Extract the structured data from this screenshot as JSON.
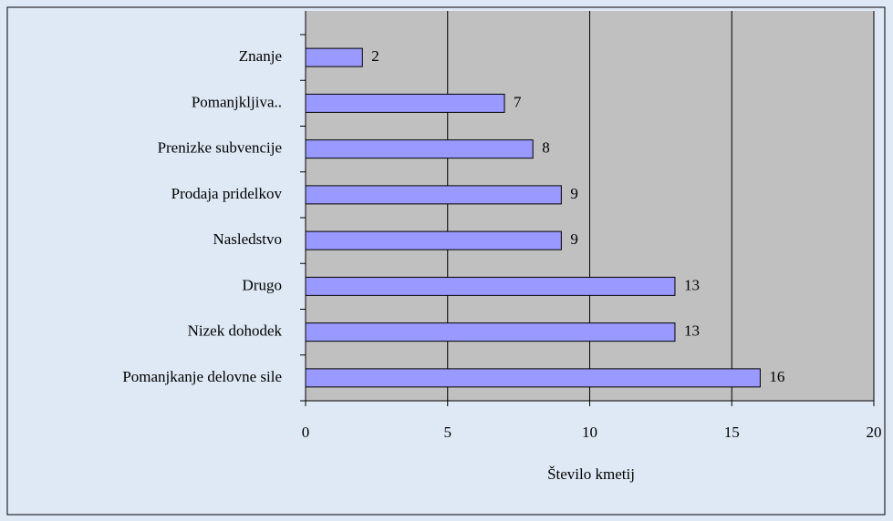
{
  "chart_data": {
    "type": "bar",
    "orientation": "horizontal",
    "categories": [
      "Znanje",
      "Pomanjkljiva..",
      "Prenizke subvencije",
      "Prodaja pridelkov",
      "Nasledstvo",
      "Drugo",
      "Nizek dohodek",
      "Pomanjkanje delovne sile"
    ],
    "values": [
      2,
      7,
      8,
      9,
      9,
      13,
      13,
      16
    ],
    "color": "#9999ff",
    "xlabel": "Število kmetij",
    "xlim": [
      0,
      20
    ],
    "xticks": [
      0,
      5,
      10,
      15,
      20
    ],
    "grid": true
  }
}
